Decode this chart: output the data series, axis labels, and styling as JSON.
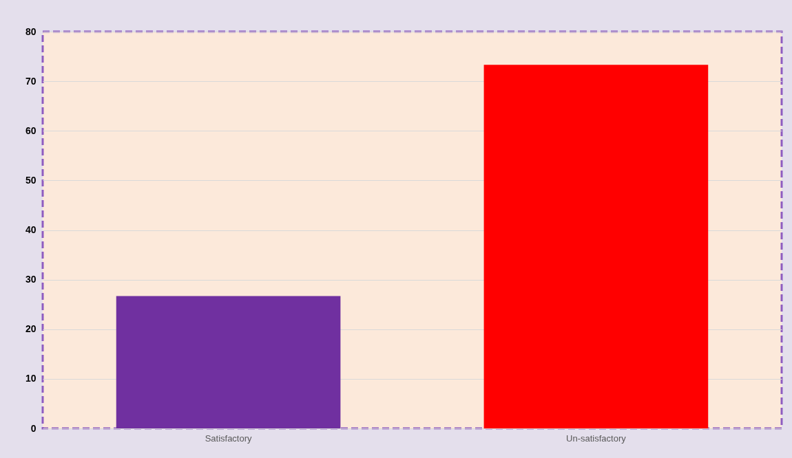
{
  "chart_data": {
    "type": "bar",
    "categories": [
      "Satisfactory",
      "Un-satisfactory"
    ],
    "values": [
      26.7,
      73.3
    ],
    "colors": [
      "#7030a0",
      "#ff0000"
    ],
    "ylim": [
      0,
      80
    ],
    "yticks": [
      0,
      10,
      20,
      30,
      40,
      50,
      60,
      70,
      80
    ],
    "grid": "y"
  }
}
